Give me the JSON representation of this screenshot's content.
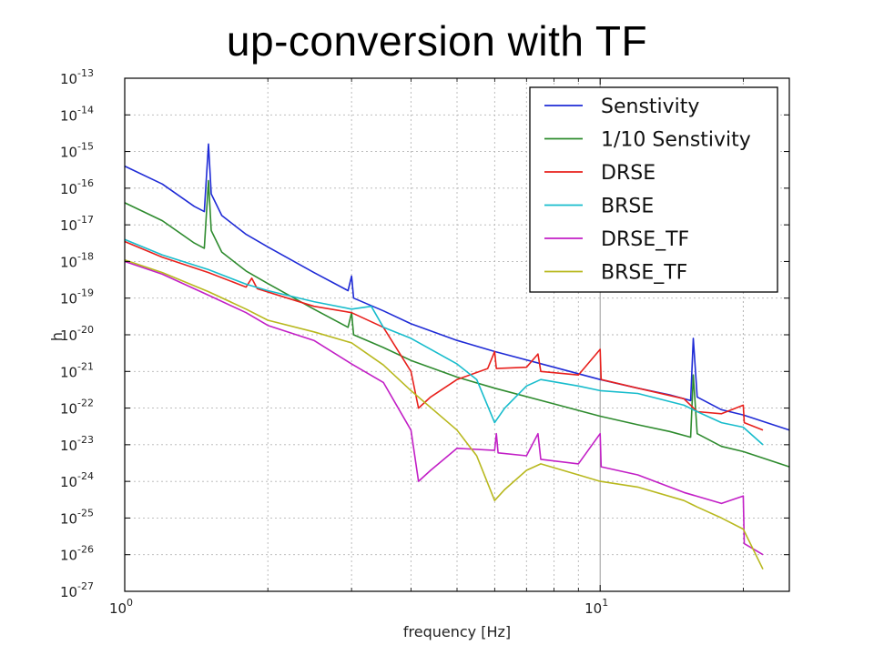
{
  "title": "up-conversion with TF",
  "chart_data": {
    "type": "line",
    "xlabel": "frequency [Hz]",
    "ylabel": "h",
    "xscale": "log",
    "yscale": "log",
    "xlim": [
      1,
      25
    ],
    "ylim": [
      1e-27,
      1e-13
    ],
    "grid": true,
    "legend_position": "top-right",
    "x_tick_labels": [
      {
        "value": 1,
        "base": "10",
        "exp": "0"
      },
      {
        "value": 10,
        "base": "10",
        "exp": "1"
      }
    ],
    "y_tick_labels": [
      {
        "value": 1e-13,
        "base": "10",
        "exp": "-13"
      },
      {
        "value": 1e-14,
        "base": "10",
        "exp": "-14"
      },
      {
        "value": 1e-15,
        "base": "10",
        "exp": "-15"
      },
      {
        "value": 1e-16,
        "base": "10",
        "exp": "-16"
      },
      {
        "value": 1e-17,
        "base": "10",
        "exp": "-17"
      },
      {
        "value": 1e-18,
        "base": "10",
        "exp": "-18"
      },
      {
        "value": 1e-19,
        "base": "10",
        "exp": "-19"
      },
      {
        "value": 1e-20,
        "base": "10",
        "exp": "-20"
      },
      {
        "value": 1e-21,
        "base": "10",
        "exp": "-21"
      },
      {
        "value": 1e-22,
        "base": "10",
        "exp": "-22"
      },
      {
        "value": 1e-23,
        "base": "10",
        "exp": "-23"
      },
      {
        "value": 1e-24,
        "base": "10",
        "exp": "-24"
      },
      {
        "value": 1e-25,
        "base": "10",
        "exp": "-25"
      },
      {
        "value": 1e-26,
        "base": "10",
        "exp": "-26"
      },
      {
        "value": 1e-27,
        "base": "10",
        "exp": "-27"
      }
    ],
    "series": [
      {
        "name": "Senstivity",
        "color": "#1f2bd6",
        "points": [
          [
            1.0,
            4e-16
          ],
          [
            1.2,
            1.3e-16
          ],
          [
            1.4,
            3.2e-17
          ],
          [
            1.47,
            2.3e-17
          ],
          [
            1.5,
            1.6e-15
          ],
          [
            1.52,
            7e-17
          ],
          [
            1.6,
            1.8e-17
          ],
          [
            1.8,
            5.5e-18
          ],
          [
            2.0,
            2.5e-18
          ],
          [
            2.5,
            5e-19
          ],
          [
            2.95,
            1.6e-19
          ],
          [
            3.0,
            4e-19
          ],
          [
            3.03,
            1e-19
          ],
          [
            3.5,
            4.5e-20
          ],
          [
            4.0,
            2e-20
          ],
          [
            5.0,
            7e-21
          ],
          [
            6.0,
            3.5e-21
          ],
          [
            8.0,
            1.3e-21
          ],
          [
            10.0,
            6e-22
          ],
          [
            12.0,
            3.5e-22
          ],
          [
            14.0,
            2.3e-22
          ],
          [
            15.5,
            1.6e-22
          ],
          [
            15.7,
            8e-21
          ],
          [
            16.0,
            2e-22
          ],
          [
            18.0,
            9e-23
          ],
          [
            20.0,
            6.5e-23
          ],
          [
            25.0,
            2.5e-23
          ]
        ]
      },
      {
        "name": "1/10 Senstivity",
        "color": "#2e8b2e",
        "points": [
          [
            1.0,
            4e-17
          ],
          [
            1.2,
            1.3e-17
          ],
          [
            1.4,
            3.2e-18
          ],
          [
            1.47,
            2.3e-18
          ],
          [
            1.5,
            1.6e-16
          ],
          [
            1.52,
            7e-18
          ],
          [
            1.6,
            1.8e-18
          ],
          [
            1.8,
            5.5e-19
          ],
          [
            2.0,
            2.5e-19
          ],
          [
            2.5,
            5e-20
          ],
          [
            2.95,
            1.6e-20
          ],
          [
            3.0,
            4e-20
          ],
          [
            3.03,
            1e-20
          ],
          [
            3.5,
            4.5e-21
          ],
          [
            4.0,
            2e-21
          ],
          [
            5.0,
            7e-22
          ],
          [
            6.0,
            3.5e-22
          ],
          [
            8.0,
            1.3e-22
          ],
          [
            10.0,
            6e-23
          ],
          [
            12.0,
            3.5e-23
          ],
          [
            14.0,
            2.3e-23
          ],
          [
            15.5,
            1.6e-23
          ],
          [
            15.7,
            8e-22
          ],
          [
            16.0,
            2e-23
          ],
          [
            18.0,
            9e-24
          ],
          [
            20.0,
            6.5e-24
          ],
          [
            25.0,
            2.5e-24
          ]
        ]
      },
      {
        "name": "DRSE",
        "color": "#e8201c",
        "points": [
          [
            1.0,
            3.5e-18
          ],
          [
            1.2,
            1.3e-18
          ],
          [
            1.5,
            5e-19
          ],
          [
            1.8,
            2e-19
          ],
          [
            1.85,
            3.5e-19
          ],
          [
            1.9,
            1.8e-19
          ],
          [
            2.2,
            1e-19
          ],
          [
            2.5,
            6e-20
          ],
          [
            3.0,
            4e-20
          ],
          [
            3.5,
            1.6e-20
          ],
          [
            4.0,
            1e-21
          ],
          [
            4.15,
            1e-22
          ],
          [
            4.4,
            2e-22
          ],
          [
            5.0,
            6e-22
          ],
          [
            5.8,
            1.2e-21
          ],
          [
            6.0,
            3.5e-21
          ],
          [
            6.05,
            1.2e-21
          ],
          [
            7.0,
            1.3e-21
          ],
          [
            7.4,
            3e-21
          ],
          [
            7.5,
            1e-21
          ],
          [
            9.0,
            8e-22
          ],
          [
            10.0,
            4e-21
          ],
          [
            10.05,
            6e-22
          ],
          [
            12.0,
            3.5e-22
          ],
          [
            15.0,
            1.8e-22
          ],
          [
            16.0,
            8e-23
          ],
          [
            18.0,
            7e-23
          ],
          [
            20.0,
            1.2e-22
          ],
          [
            20.1,
            4e-23
          ],
          [
            22.0,
            2.5e-23
          ]
        ]
      },
      {
        "name": "BRSE",
        "color": "#17bccc",
        "points": [
          [
            1.0,
            4e-18
          ],
          [
            1.2,
            1.5e-18
          ],
          [
            1.5,
            6e-19
          ],
          [
            1.8,
            2.4e-19
          ],
          [
            2.0,
            1.6e-19
          ],
          [
            2.5,
            8e-20
          ],
          [
            3.0,
            5e-20
          ],
          [
            3.3,
            6e-20
          ],
          [
            3.5,
            1.6e-20
          ],
          [
            4.0,
            8e-21
          ],
          [
            5.0,
            1.6e-21
          ],
          [
            5.5,
            6e-22
          ],
          [
            6.0,
            4e-23
          ],
          [
            6.3,
            1e-22
          ],
          [
            7.0,
            4e-22
          ],
          [
            7.5,
            6e-22
          ],
          [
            9.0,
            4e-22
          ],
          [
            10.0,
            3e-22
          ],
          [
            12.0,
            2.5e-22
          ],
          [
            15.0,
            1.2e-22
          ],
          [
            16.0,
            8e-23
          ],
          [
            18.0,
            4e-23
          ],
          [
            20.0,
            3e-23
          ],
          [
            22.0,
            1e-23
          ]
        ]
      },
      {
        "name": "DRSE_TF",
        "color": "#c21fc6",
        "points": [
          [
            1.0,
            1e-18
          ],
          [
            1.2,
            4.5e-19
          ],
          [
            1.5,
            1.2e-19
          ],
          [
            1.8,
            4e-20
          ],
          [
            2.0,
            1.8e-20
          ],
          [
            2.5,
            7e-21
          ],
          [
            3.0,
            1.6e-21
          ],
          [
            3.5,
            5e-22
          ],
          [
            4.0,
            2.5e-23
          ],
          [
            4.15,
            1e-24
          ],
          [
            4.4,
            2e-24
          ],
          [
            5.0,
            8e-24
          ],
          [
            6.0,
            7e-24
          ],
          [
            6.05,
            2e-23
          ],
          [
            6.1,
            6e-24
          ],
          [
            7.0,
            5e-24
          ],
          [
            7.4,
            2e-23
          ],
          [
            7.5,
            4e-24
          ],
          [
            9.0,
            3e-24
          ],
          [
            10.0,
            2e-23
          ],
          [
            10.05,
            2.5e-24
          ],
          [
            12.0,
            1.5e-24
          ],
          [
            15.0,
            5e-25
          ],
          [
            18.0,
            2.5e-25
          ],
          [
            20.0,
            4e-25
          ],
          [
            20.1,
            2e-26
          ],
          [
            22.0,
            1e-26
          ]
        ]
      },
      {
        "name": "BRSE_TF",
        "color": "#b8b81e",
        "points": [
          [
            1.0,
            1.1e-18
          ],
          [
            1.2,
            5e-19
          ],
          [
            1.5,
            1.5e-19
          ],
          [
            1.8,
            5e-20
          ],
          [
            2.0,
            2.5e-20
          ],
          [
            2.5,
            1.2e-20
          ],
          [
            3.0,
            6e-21
          ],
          [
            3.5,
            1.5e-21
          ],
          [
            4.0,
            3e-22
          ],
          [
            5.0,
            2.5e-23
          ],
          [
            5.5,
            5e-24
          ],
          [
            6.0,
            3e-25
          ],
          [
            6.3,
            6e-25
          ],
          [
            7.0,
            2e-24
          ],
          [
            7.5,
            3e-24
          ],
          [
            9.0,
            1.5e-24
          ],
          [
            10.0,
            1e-24
          ],
          [
            12.0,
            7e-25
          ],
          [
            15.0,
            3e-25
          ],
          [
            16.0,
            2e-25
          ],
          [
            18.0,
            1e-25
          ],
          [
            20.0,
            5e-26
          ],
          [
            22.0,
            4e-27
          ]
        ]
      }
    ]
  }
}
